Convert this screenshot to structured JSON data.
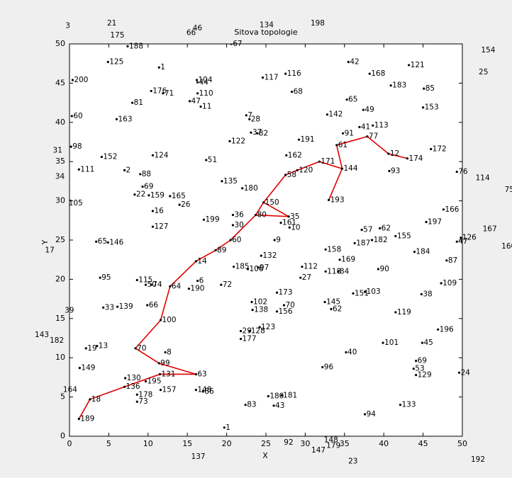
{
  "chart_data": {
    "type": "network",
    "title": "Sitova topologie",
    "x_label": "X",
    "y_label": "Y",
    "xlim": [
      0,
      50
    ],
    "ylim": [
      0,
      50
    ],
    "xticks": [
      0,
      5,
      10,
      15,
      20,
      25,
      30,
      35,
      40,
      45,
      50
    ],
    "yticks": [
      0,
      5,
      10,
      15,
      20,
      25,
      30,
      35,
      40,
      45,
      50
    ],
    "nodes": {
      "color": "#000000",
      "labels": [
        "3",
        "21",
        "175",
        "66",
        "46",
        "134",
        "198",
        "67",
        "154",
        "25",
        "114",
        "75",
        "167",
        "160",
        "31",
        "34",
        "105",
        "17",
        "39",
        "143",
        "182",
        "164",
        "137",
        "92",
        "148",
        "147",
        "179",
        "23",
        "192",
        "188",
        "125",
        "200",
        "1",
        "104",
        "44",
        "117",
        "116",
        "42",
        "168",
        "121",
        "183",
        "85",
        "176",
        "71",
        "110",
        "68",
        "81",
        "47",
        "11",
        "65",
        "49",
        "153",
        "60",
        "163",
        "7",
        "28",
        "142",
        "41",
        "113",
        "37",
        "82",
        "91",
        "77",
        "122",
        "191",
        "98",
        "61",
        "152",
        "124",
        "162",
        "12",
        "174",
        "172",
        "111",
        "2",
        "51",
        "171",
        "144",
        "120",
        "58",
        "93",
        "76",
        "88",
        "135",
        "180",
        "69",
        "22",
        "159",
        "165",
        "26",
        "193",
        "150",
        "166",
        "16",
        "36",
        "80",
        "35",
        "199",
        "127",
        "30",
        "161",
        "10",
        "197",
        "57",
        "62",
        "155",
        "182",
        "187",
        "126",
        "47",
        "65",
        "146",
        "60",
        "9",
        "89",
        "158",
        "184",
        "14",
        "132",
        "169",
        "87",
        "185",
        "106",
        "97",
        "112",
        "118",
        "84",
        "90",
        "27",
        "95",
        "115",
        "50",
        "74",
        "64",
        "6",
        "190",
        "72",
        "173",
        "103",
        "151",
        "109",
        "38",
        "102",
        "145",
        "70",
        "138",
        "156",
        "62",
        "119",
        "33",
        "139",
        "66",
        "100",
        "29",
        "128",
        "123",
        "177",
        "196",
        "101",
        "45",
        "19",
        "13",
        "70",
        "8",
        "40",
        "149",
        "99",
        "96",
        "69",
        "53",
        "129",
        "24",
        "130",
        "131",
        "63",
        "195",
        "136",
        "148",
        "86",
        "157",
        "178",
        "73",
        "18",
        "180",
        "181",
        "83",
        "43",
        "133",
        "94",
        "189",
        "1"
      ],
      "x": [
        -0.7,
        4.6,
        5.0,
        14.7,
        15.5,
        24.0,
        30.5,
        20.6,
        52.2,
        51.9,
        51.5,
        55.2,
        52.4,
        54.8,
        -2.3,
        -2.0,
        -0.3,
        -3.3,
        -0.8,
        -4.6,
        -2.7,
        -1.0,
        15.3,
        27.1,
        32.2,
        30.6,
        32.5,
        35.3,
        50.9,
        7.4,
        4.9,
        0.4,
        11.4,
        16.2,
        16.3,
        24.6,
        27.5,
        35.5,
        38.2,
        43.2,
        40.9,
        45.1,
        10.4,
        11.9,
        16.3,
        28.3,
        8.0,
        15.3,
        16.7,
        35.3,
        37.4,
        45.0,
        0.3,
        6.0,
        22.5,
        22.9,
        32.8,
        36.9,
        38.6,
        23.1,
        23.9,
        34.8,
        37.9,
        20.4,
        29.2,
        0.2,
        34.0,
        4.1,
        10.6,
        27.6,
        40.6,
        43.0,
        46.0,
        1.2,
        7.0,
        17.4,
        31.8,
        34.7,
        29.0,
        27.5,
        40.7,
        49.3,
        9.0,
        19.4,
        22.0,
        9.3,
        8.3,
        10.1,
        12.8,
        14.0,
        33.0,
        24.7,
        47.6,
        10.6,
        20.8,
        23.7,
        27.9,
        17.1,
        10.6,
        20.8,
        26.9,
        28.0,
        45.4,
        37.2,
        39.5,
        41.5,
        38.5,
        36.3,
        49.8,
        49.3,
        3.4,
        4.9,
        20.5,
        26.1,
        18.6,
        32.6,
        43.9,
        16.1,
        24.4,
        34.4,
        48.0,
        20.9,
        22.7,
        24.0,
        29.6,
        32.6,
        34.2,
        39.3,
        29.4,
        3.9,
        8.6,
        9.7,
        10.4,
        12.8,
        16.3,
        15.2,
        19.3,
        26.4,
        37.6,
        36.1,
        47.3,
        44.8,
        23.2,
        32.5,
        27.3,
        23.3,
        26.4,
        33.3,
        41.5,
        4.3,
        6.1,
        9.9,
        11.6,
        21.8,
        22.9,
        24.2,
        21.8,
        46.9,
        39.9,
        44.9,
        2.1,
        3.5,
        8.4,
        12.2,
        35.2,
        1.3,
        11.4,
        32.2,
        44.1,
        43.8,
        44.1,
        49.6,
        7.1,
        11.5,
        16.1,
        9.7,
        7.0,
        16.1,
        17.0,
        11.6,
        8.6,
        8.6,
        2.6,
        25.3,
        27.0,
        22.4,
        26.0,
        42.1,
        37.6,
        1.2,
        19.7
      ],
      "y": [
        52.3,
        52.6,
        51.1,
        51.4,
        52.0,
        52.4,
        52.6,
        50.0,
        49.2,
        46.4,
        32.9,
        31.4,
        26.4,
        24.2,
        36.4,
        33.1,
        29.7,
        23.7,
        16.0,
        12.9,
        12.2,
        5.9,
        -2.6,
        -0.8,
        -0.5,
        -1.8,
        -1.2,
        -3.2,
        -3.0,
        49.7,
        47.7,
        45.4,
        47.0,
        45.4,
        45.1,
        45.7,
        46.2,
        47.7,
        46.2,
        47.3,
        44.7,
        44.3,
        44.0,
        43.7,
        43.7,
        43.9,
        42.5,
        42.7,
        42.0,
        42.9,
        41.6,
        41.9,
        40.8,
        40.4,
        40.9,
        40.4,
        41.0,
        39.4,
        39.6,
        38.7,
        38.6,
        38.6,
        38.2,
        37.6,
        37.8,
        36.9,
        37.1,
        35.6,
        35.8,
        35.8,
        36.0,
        35.4,
        36.6,
        34.0,
        33.9,
        35.2,
        35.0,
        34.1,
        33.9,
        33.3,
        33.8,
        33.7,
        33.4,
        32.5,
        31.6,
        31.8,
        30.8,
        30.7,
        30.6,
        29.5,
        30.1,
        29.8,
        28.9,
        28.7,
        28.2,
        28.2,
        28.0,
        27.6,
        26.7,
        26.9,
        27.2,
        26.6,
        27.3,
        26.3,
        26.5,
        25.5,
        25.0,
        24.6,
        25.3,
        24.8,
        24.8,
        24.7,
        25.0,
        25.0,
        23.7,
        23.8,
        23.5,
        22.3,
        23.0,
        22.5,
        22.4,
        21.6,
        21.3,
        21.5,
        21.6,
        21.0,
        21.0,
        21.3,
        20.2,
        20.2,
        19.9,
        19.3,
        19.3,
        19.1,
        19.8,
        18.8,
        19.3,
        18.3,
        18.4,
        18.2,
        19.5,
        18.1,
        17.1,
        17.1,
        16.7,
        16.1,
        15.9,
        16.2,
        15.8,
        16.4,
        16.5,
        16.7,
        14.8,
        13.4,
        13.4,
        13.9,
        12.4,
        13.6,
        11.9,
        11.9,
        11.2,
        11.5,
        11.2,
        10.7,
        10.7,
        8.7,
        9.3,
        8.8,
        9.6,
        8.6,
        7.8,
        8.1,
        7.4,
        7.9,
        7.9,
        7.0,
        6.3,
        5.9,
        5.7,
        5.9,
        5.3,
        4.4,
        4.7,
        5.1,
        5.2,
        4.0,
        3.9,
        4.0,
        2.8,
        2.2,
        1.1
      ]
    },
    "links": {
      "color": "#e00000",
      "x": [
        1.2,
        2.6,
        7.0,
        11.5,
        16.1,
        11.4,
        8.4,
        11.6,
        12.8,
        16.1,
        18.6,
        20.5,
        23.7,
        24.7,
        27.5,
        29.0,
        31.8,
        34.7,
        34.0,
        37.9,
        40.6,
        43.0,
        null,
        23.7,
        27.9,
        24.7,
        null,
        34.7,
        33.0
      ],
      "y": [
        2.2,
        4.7,
        6.3,
        7.9,
        7.9,
        9.3,
        11.2,
        14.8,
        19.1,
        22.3,
        23.7,
        25.0,
        28.2,
        29.8,
        33.3,
        33.9,
        35.0,
        34.1,
        37.1,
        38.2,
        36.0,
        35.4,
        null,
        28.2,
        28.0,
        29.8,
        null,
        34.1,
        30.1
      ]
    }
  }
}
